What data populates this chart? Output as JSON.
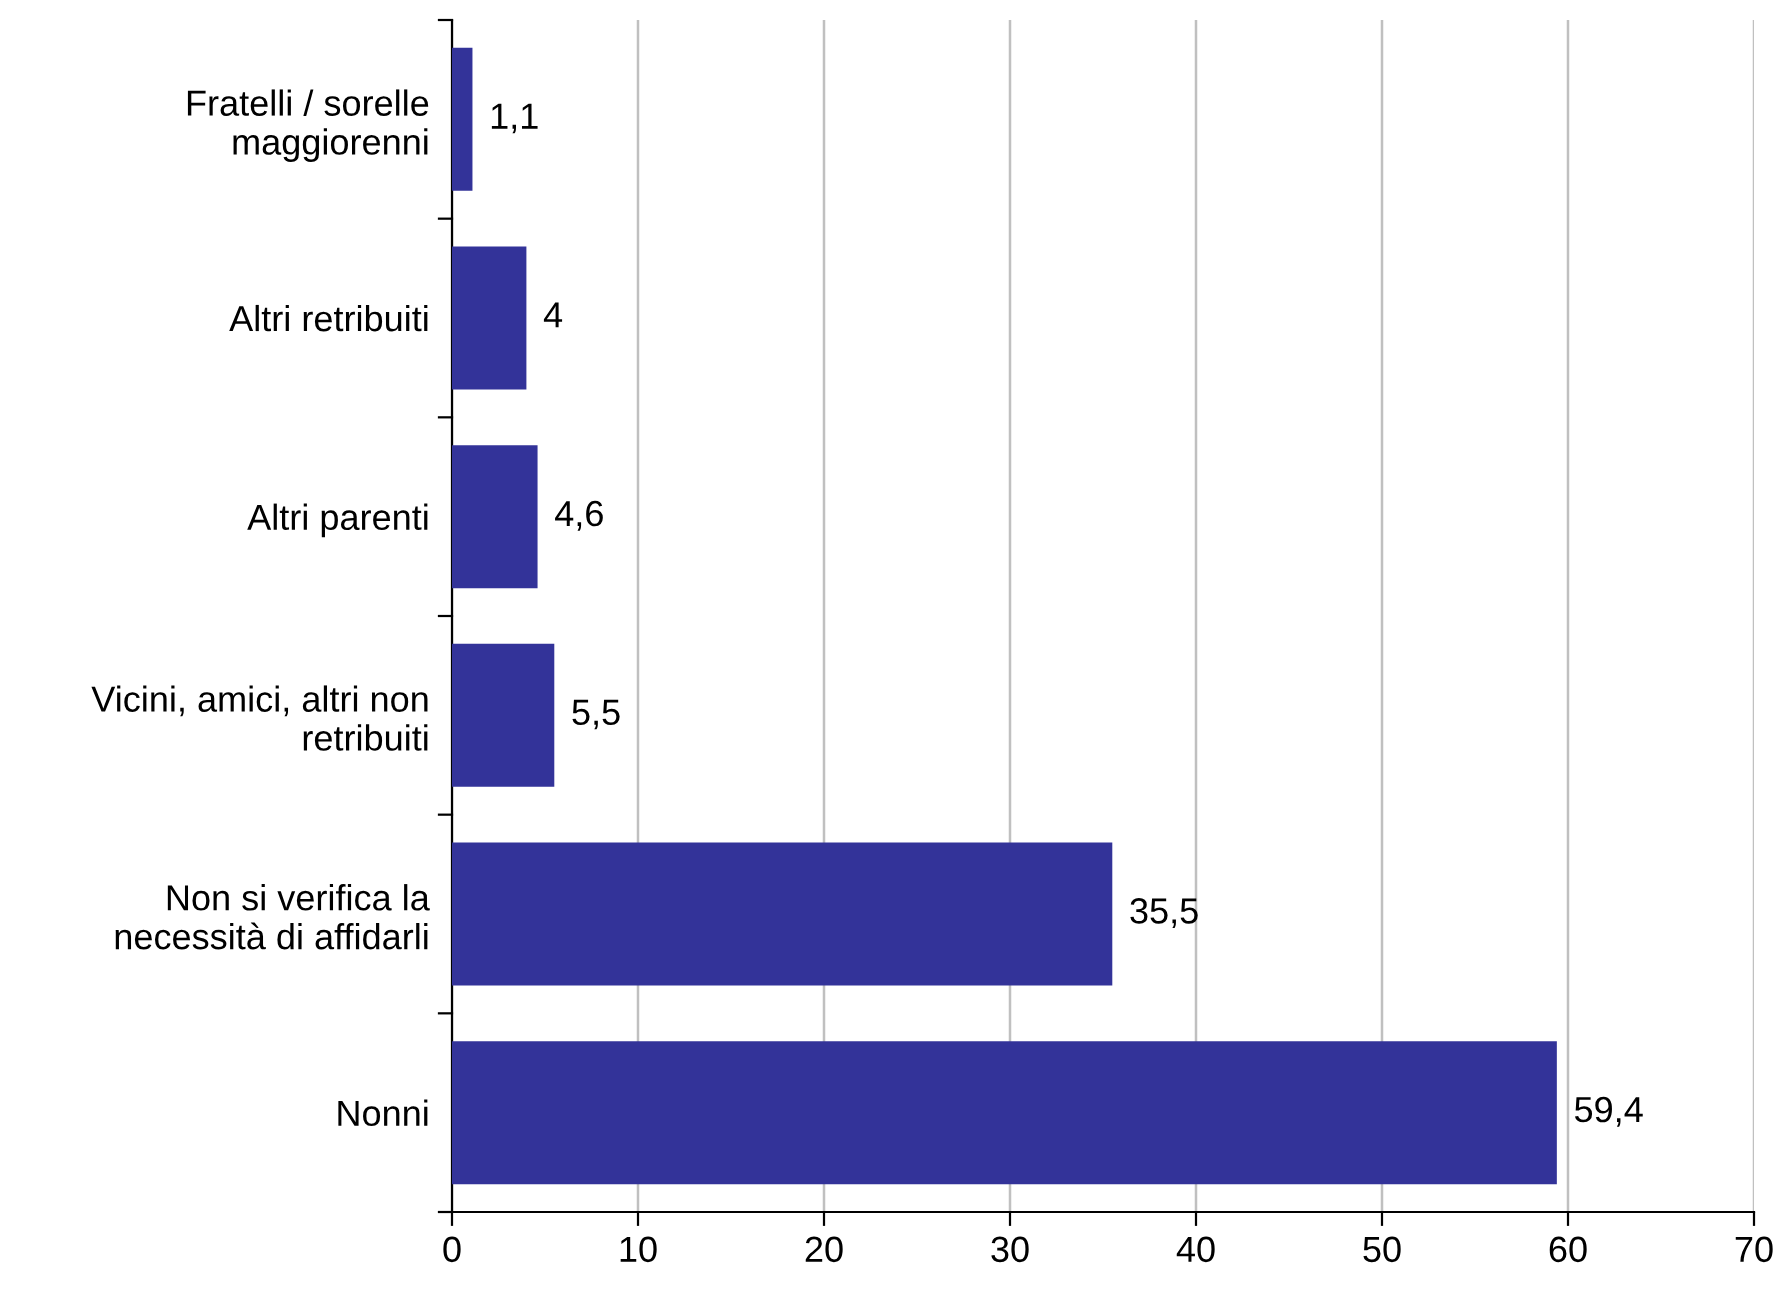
{
  "chart_data": {
    "type": "bar",
    "orientation": "horizontal",
    "categories": [
      "Fratelli / sorelle\nmaggiorenni",
      "Altri retribuiti",
      "Altri parenti",
      "Vicini, amici, altri non\nretribuiti",
      "Non si verifica la\nnecessità di affidarli",
      "Nonni"
    ],
    "values": [
      1.1,
      4,
      4.6,
      5.5,
      35.5,
      59.4
    ],
    "value_labels": [
      "1,1",
      "4",
      "4,6",
      "5,5",
      "35,5",
      "59,4"
    ],
    "color": "#333399",
    "xlim": [
      0,
      70
    ],
    "xticks": [
      0,
      10,
      20,
      30,
      40,
      50,
      60,
      70
    ],
    "grid": "x",
    "legend": false
  }
}
